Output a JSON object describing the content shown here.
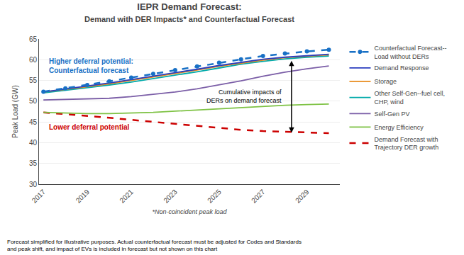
{
  "chart_data": {
    "type": "line",
    "title": "IEPR Demand Forecast:",
    "subtitle": "Demand with DER Impacts* and Counterfactual Forecast",
    "x_label": "*Non-coincident peak load",
    "y_label": "Peak Load (GW)",
    "x": [
      2017,
      2018,
      2019,
      2020,
      2021,
      2022,
      2023,
      2024,
      2025,
      2026,
      2027,
      2028,
      2029,
      2030
    ],
    "xlim": [
      2016.8,
      2030.5
    ],
    "xticks": [
      2017,
      2019,
      2021,
      2023,
      2025,
      2027,
      2029
    ],
    "ylim": [
      30,
      65
    ],
    "yticks": [
      30,
      35,
      40,
      45,
      50,
      55,
      60,
      65
    ],
    "grid": true,
    "legend": "right",
    "series": [
      {
        "name": "Counterfactual Forecast--\nLoad without DERs",
        "color": "#1870C5",
        "line_style": "dashed",
        "marker": "circle",
        "values": [
          52.3,
          53.1,
          53.9,
          54.8,
          55.7,
          56.6,
          57.5,
          58.4,
          59.3,
          60.1,
          60.9,
          61.5,
          62.0,
          62.4
        ]
      },
      {
        "name": "Demand Response",
        "color": "#2B3EBF",
        "line_style": "solid",
        "values": [
          52.2,
          52.9,
          53.6,
          54.4,
          55.2,
          56.0,
          56.9,
          57.7,
          58.6,
          59.4,
          60.1,
          60.6,
          61.0,
          61.3
        ]
      },
      {
        "name": "Storage",
        "color": "#E88A1A",
        "line_style": "solid",
        "values": [
          52.2,
          52.8,
          53.5,
          54.2,
          55.0,
          55.8,
          56.6,
          57.5,
          58.4,
          59.2,
          59.9,
          60.5,
          60.9,
          61.2
        ]
      },
      {
        "name": "Other Self-Gen--fuel cell,\nCHP, wind",
        "color": "#00AAAA",
        "line_style": "solid",
        "values": [
          52.0,
          52.6,
          53.2,
          53.9,
          54.6,
          55.4,
          56.2,
          57.1,
          58.0,
          58.9,
          59.6,
          60.2,
          60.6,
          60.9
        ]
      },
      {
        "name": "Self-Gen PV",
        "color": "#7B5EA7",
        "line_style": "solid",
        "values": [
          50.3,
          50.4,
          50.5,
          50.7,
          51.1,
          51.6,
          52.2,
          53.0,
          53.9,
          54.9,
          56.0,
          57.0,
          57.8,
          58.5
        ]
      },
      {
        "name": "Energy Efficiency",
        "color": "#7EC244",
        "line_style": "solid",
        "values": [
          47.3,
          47.1,
          47.0,
          47.0,
          47.1,
          47.3,
          47.6,
          47.9,
          48.2,
          48.5,
          48.8,
          49.0,
          49.2,
          49.3
        ]
      },
      {
        "name": "Demand Forecast with\nTrajectory DER growth",
        "color": "#CC0000",
        "line_style": "dashed",
        "values": [
          47.3,
          46.9,
          46.5,
          46.0,
          45.5,
          45.0,
          44.5,
          44.0,
          43.5,
          43.1,
          42.8,
          42.6,
          42.4,
          42.3
        ]
      }
    ],
    "annotations": [
      {
        "text": "Cumulative impacts of\nDERs on demand forecast",
        "x": 2028.3,
        "y_top": 60.0,
        "y_bottom": 42.4
      },
      {
        "text": "Higher deferral potential:\nCounterfactual forecast",
        "x": 2017.2,
        "y": 58.5,
        "color": "#1870C5"
      },
      {
        "text": "Lower deferral potential",
        "x": 2017.2,
        "y": 43.8,
        "color": "#CC0000"
      }
    ],
    "footnote": "Forecast simplified for illustrative purposes. Actual counterfactual forecast must be adjusted for Codes and Standards\nand peak shift, and impact of EVs is included in forecast but not shown on this chart"
  }
}
